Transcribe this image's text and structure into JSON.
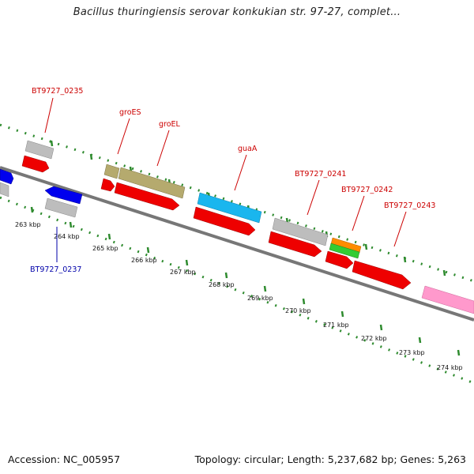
{
  "title": "Bacillus thuringiensis serovar konkukian str. 97-27, complet...",
  "footer": {
    "accession": "Accession: NC_005957",
    "summary": "Topology: circular; Length: 5,237,682 bp; Genes: 5,263"
  },
  "colors": {
    "forward_label": "#cc0000",
    "reverse_label": "#0000aa",
    "backbone": "#777777",
    "tick": "#2e8b2e"
  },
  "ticks": [
    "263 kbp",
    "264 kbp",
    "265 kbp",
    "266 kbp",
    "267 kbp",
    "268 kbp",
    "269 kbp",
    "270 kbp",
    "271 kbp",
    "272 kbp",
    "273 kbp",
    "274 kbp"
  ],
  "genes": [
    {
      "label": "BT9727_0235",
      "strand": "forward"
    },
    {
      "label": "groES",
      "strand": "forward"
    },
    {
      "label": "groEL",
      "strand": "forward"
    },
    {
      "label": "guaA",
      "strand": "forward"
    },
    {
      "label": "BT9727_0241",
      "strand": "forward"
    },
    {
      "label": "BT9727_0242",
      "strand": "forward"
    },
    {
      "label": "BT9727_0243",
      "strand": "forward"
    },
    {
      "label": "BT9727_0237",
      "strand": "reverse"
    }
  ]
}
